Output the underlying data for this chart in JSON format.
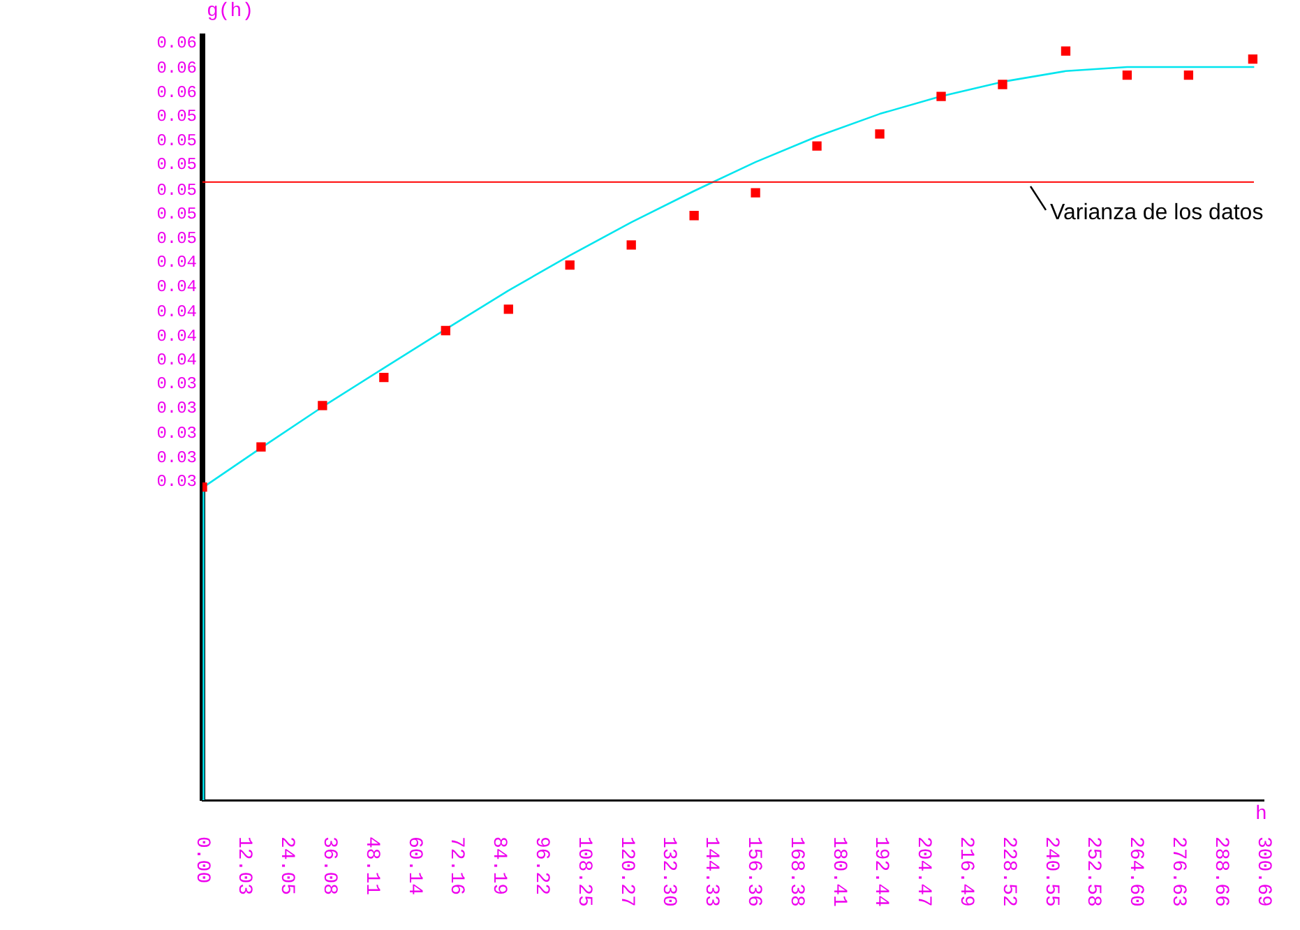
{
  "chart_data": {
    "type": "scatter",
    "ylabel": "g(h)",
    "xlabel": "h",
    "x": [
      0,
      16.6,
      34.0,
      51.4,
      68.9,
      86.7,
      104.1,
      121.5,
      139.3,
      156.7,
      174.1,
      191.9,
      209.3,
      226.7,
      244.6,
      262.0,
      279.4,
      297.6
    ],
    "series": [
      {
        "type": "scatter",
        "color": "#ff0000",
        "marker": "square",
        "values": [
          0.0269,
          0.0299,
          0.033,
          0.0351,
          0.0386,
          0.0402,
          0.0435,
          0.045,
          0.0472,
          0.0489,
          0.0524,
          0.0533,
          0.0561,
          0.057,
          0.0595,
          0.0577,
          0.0577,
          0.0589
        ]
      },
      {
        "type": "line",
        "color": "#00e5ee",
        "marker": "none",
        "line_style": "solid",
        "x": [
          0,
          0.3,
          17,
          34,
          51.4,
          68.9,
          86.7,
          104,
          121.5,
          139,
          156.7,
          174,
          191.9,
          209,
          226.7,
          244.6,
          262,
          298
        ],
        "values": [
          0.0035,
          0.0269,
          0.0299,
          0.0329,
          0.0358,
          0.0387,
          0.0416,
          0.0442,
          0.0467,
          0.049,
          0.0512,
          0.0531,
          0.0548,
          0.0561,
          0.0572,
          0.058,
          0.0583,
          0.0583
        ]
      }
    ],
    "xlim": [
      0,
      300.69
    ],
    "xticks": [
      {
        "value": 0,
        "label": "0.00"
      },
      12.03,
      24.05,
      36.08,
      48.11,
      60.14,
      72.16,
      84.19,
      96.22,
      108.25,
      120.27,
      {
        "value": 132.3,
        "label": "132.30"
      },
      144.33,
      156.36,
      168.38,
      180.41,
      192.44,
      204.47,
      216.49,
      228.52,
      240.55,
      252.58,
      {
        "value": 264.6,
        "label": "264.60"
      },
      276.63,
      288.66,
      300.69
    ],
    "ylim": [
      0.0035,
      0.0606
    ],
    "yticks": [
      {
        "value": 0.0273,
        "label": "0.03"
      },
      {
        "value": 0.0291,
        "label": "0.03"
      },
      {
        "value": 0.0309,
        "label": "0.03"
      },
      {
        "value": 0.0328,
        "label": "0.03"
      },
      {
        "value": 0.0346,
        "label": "0.03"
      },
      {
        "value": 0.0364,
        "label": "0.04"
      },
      {
        "value": 0.0382,
        "label": "0.04"
      },
      {
        "value": 0.04,
        "label": "0.04"
      },
      {
        "value": 0.0419,
        "label": "0.04"
      },
      {
        "value": 0.0437,
        "label": "0.04"
      },
      {
        "value": 0.0455,
        "label": "0.05"
      },
      {
        "value": 0.0473,
        "label": "0.05"
      },
      {
        "value": 0.0491,
        "label": "0.05"
      },
      {
        "value": 0.051,
        "label": "0.05"
      },
      {
        "value": 0.0528,
        "label": "0.05"
      },
      {
        "value": 0.0546,
        "label": "0.05"
      },
      {
        "value": 0.0564,
        "label": "0.06"
      },
      {
        "value": 0.0582,
        "label": "0.06"
      },
      {
        "value": 0.0601,
        "label": "0.06"
      }
    ],
    "ref_lines": [
      {
        "axis": "y",
        "value": 0.0497,
        "label": "Varianza de los datos",
        "color": "#ff0000"
      }
    ],
    "grid": false,
    "legend": false
  }
}
